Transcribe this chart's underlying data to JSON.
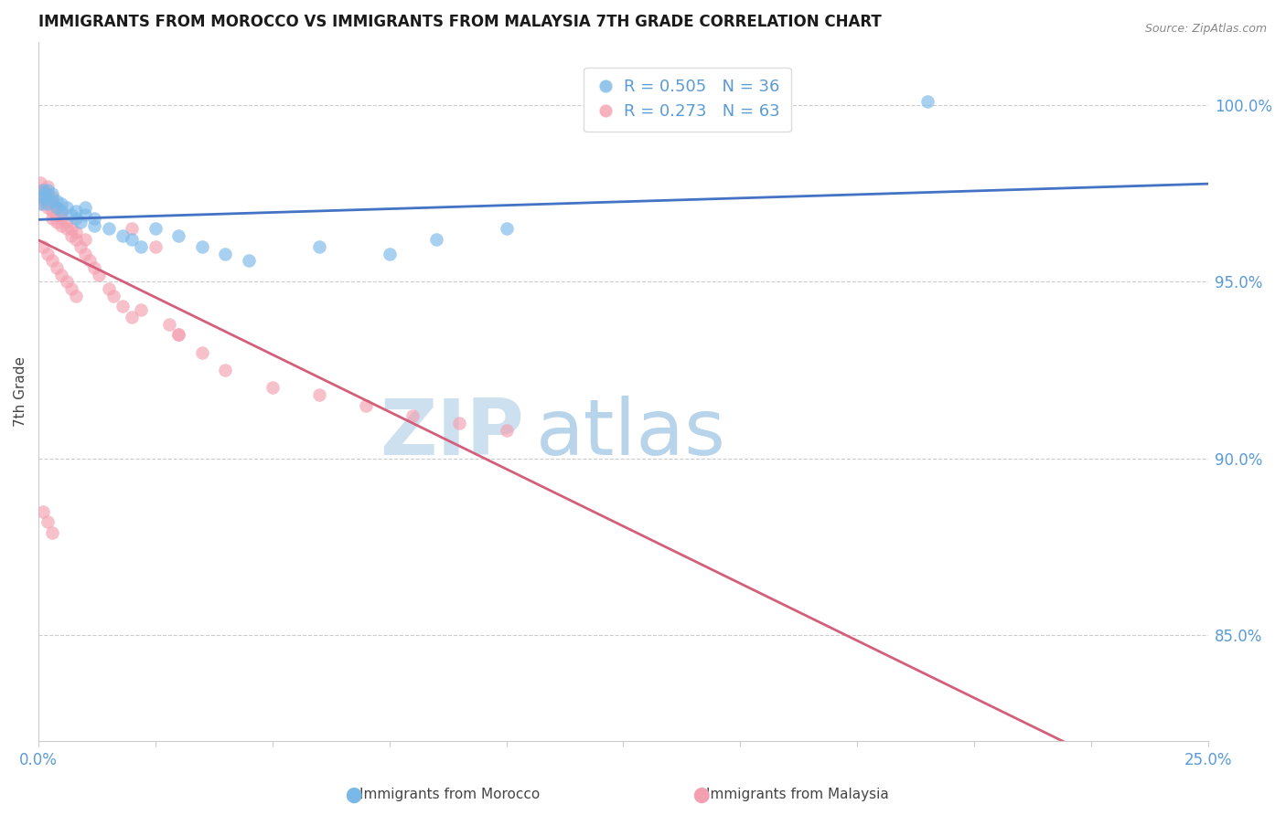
{
  "title": "IMMIGRANTS FROM MOROCCO VS IMMIGRANTS FROM MALAYSIA 7TH GRADE CORRELATION CHART",
  "source": "Source: ZipAtlas.com",
  "ylabel": "7th Grade",
  "ylabel_ticks": [
    "100.0%",
    "95.0%",
    "90.0%",
    "85.0%"
  ],
  "ytick_values": [
    1.0,
    0.95,
    0.9,
    0.85
  ],
  "xlim": [
    0.0,
    0.25
  ],
  "ylim": [
    0.82,
    1.018
  ],
  "legend_R_blue": "R = 0.505",
  "legend_N_blue": "N = 36",
  "legend_R_pink": "R = 0.273",
  "legend_N_pink": "N = 63",
  "blue_color": "#7ab8e8",
  "pink_color": "#f4a0b0",
  "blue_line_color": "#4472c4",
  "pink_line_color": "#d45f7a",
  "axis_color": "#5b9bd5",
  "watermark_ZIP_color": "#c8dff0",
  "watermark_atlas_color": "#b0cce8",
  "morocco_x": [
    0.0005,
    0.001,
    0.001,
    0.0015,
    0.002,
    0.002,
    0.002,
    0.003,
    0.003,
    0.004,
    0.004,
    0.005,
    0.005,
    0.006,
    0.007,
    0.008,
    0.008,
    0.009,
    0.01,
    0.01,
    0.012,
    0.012,
    0.015,
    0.018,
    0.02,
    0.022,
    0.025,
    0.03,
    0.035,
    0.04,
    0.045,
    0.06,
    0.075,
    0.085,
    0.1,
    0.19
  ],
  "morocco_y": [
    0.972,
    0.974,
    0.976,
    0.975,
    0.972,
    0.974,
    0.976,
    0.973,
    0.975,
    0.971,
    0.973,
    0.97,
    0.972,
    0.971,
    0.969,
    0.968,
    0.97,
    0.967,
    0.969,
    0.971,
    0.966,
    0.968,
    0.965,
    0.963,
    0.962,
    0.96,
    0.965,
    0.963,
    0.96,
    0.958,
    0.956,
    0.96,
    0.958,
    0.962,
    0.965,
    1.001
  ],
  "malaysia_x": [
    0.0003,
    0.0005,
    0.0008,
    0.001,
    0.001,
    0.001,
    0.0015,
    0.0015,
    0.002,
    0.002,
    0.002,
    0.002,
    0.003,
    0.003,
    0.003,
    0.003,
    0.004,
    0.004,
    0.004,
    0.005,
    0.005,
    0.005,
    0.006,
    0.006,
    0.007,
    0.007,
    0.008,
    0.008,
    0.009,
    0.01,
    0.01,
    0.011,
    0.012,
    0.013,
    0.015,
    0.016,
    0.018,
    0.02,
    0.022,
    0.025,
    0.028,
    0.03,
    0.035,
    0.04,
    0.05,
    0.06,
    0.07,
    0.08,
    0.09,
    0.1,
    0.001,
    0.002,
    0.003,
    0.004,
    0.005,
    0.006,
    0.007,
    0.008,
    0.02,
    0.03,
    0.001,
    0.002,
    0.003
  ],
  "malaysia_y": [
    0.975,
    0.978,
    0.976,
    0.972,
    0.974,
    0.976,
    0.973,
    0.975,
    0.971,
    0.973,
    0.975,
    0.977,
    0.972,
    0.974,
    0.97,
    0.968,
    0.969,
    0.971,
    0.967,
    0.968,
    0.966,
    0.97,
    0.965,
    0.967,
    0.963,
    0.965,
    0.962,
    0.964,
    0.96,
    0.958,
    0.962,
    0.956,
    0.954,
    0.952,
    0.948,
    0.946,
    0.943,
    0.965,
    0.942,
    0.96,
    0.938,
    0.935,
    0.93,
    0.925,
    0.92,
    0.918,
    0.915,
    0.912,
    0.91,
    0.908,
    0.96,
    0.958,
    0.956,
    0.954,
    0.952,
    0.95,
    0.948,
    0.946,
    0.94,
    0.935,
    0.885,
    0.882,
    0.879
  ]
}
